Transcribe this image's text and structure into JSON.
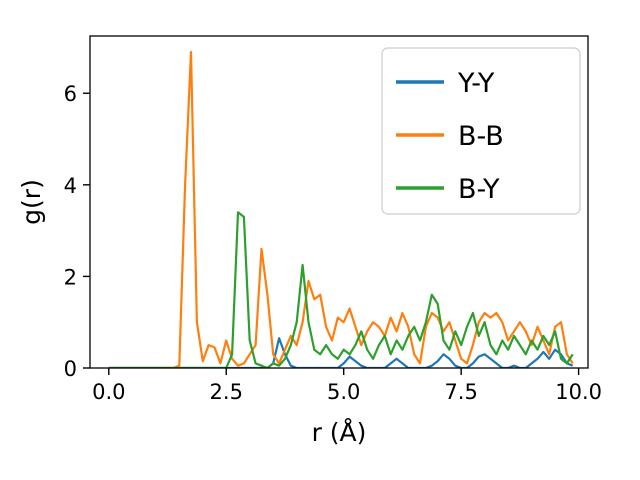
{
  "chart_data": {
    "type": "line",
    "title": "",
    "xlabel": "r (Å)",
    "ylabel": "g(r)",
    "xlim": [
      -0.4,
      10.2
    ],
    "ylim": [
      0,
      7.25
    ],
    "xticks": [
      0.0,
      2.5,
      5.0,
      7.5,
      10.0
    ],
    "xtick_labels": [
      "0.0",
      "2.5",
      "5.0",
      "7.5",
      "10.0"
    ],
    "yticks": [
      0,
      2,
      4,
      6
    ],
    "ytick_labels": [
      "0",
      "2",
      "4",
      "6"
    ],
    "grid": false,
    "legend_position": "upper right",
    "x": [
      0,
      0.125,
      0.25,
      0.375,
      0.5,
      0.625,
      0.75,
      0.875,
      1,
      1.125,
      1.25,
      1.375,
      1.5,
      1.625,
      1.75,
      1.875,
      2,
      2.125,
      2.25,
      2.375,
      2.5,
      2.625,
      2.75,
      2.875,
      3,
      3.125,
      3.25,
      3.375,
      3.5,
      3.625,
      3.75,
      3.875,
      4,
      4.125,
      4.25,
      4.375,
      4.5,
      4.625,
      4.75,
      4.875,
      5,
      5.125,
      5.25,
      5.375,
      5.5,
      5.625,
      5.75,
      5.875,
      6,
      6.125,
      6.25,
      6.375,
      6.5,
      6.625,
      6.75,
      6.875,
      7,
      7.125,
      7.25,
      7.375,
      7.5,
      7.625,
      7.75,
      7.875,
      8,
      8.125,
      8.25,
      8.375,
      8.5,
      8.625,
      8.75,
      8.875,
      9,
      9.125,
      9.25,
      9.375,
      9.5,
      9.625,
      9.75,
      9.875
    ],
    "series": [
      {
        "name": "Y-Y",
        "color": "#1f77b4",
        "values": [
          0,
          0,
          0,
          0,
          0,
          0,
          0,
          0,
          0,
          0,
          0,
          0,
          0,
          0,
          0,
          0,
          0,
          0,
          0,
          0,
          0,
          0,
          0,
          0,
          0,
          0,
          0,
          0,
          0.1,
          0.65,
          0.3,
          0.05,
          0,
          0,
          0,
          0,
          0,
          0,
          0,
          0,
          0.1,
          0.25,
          0.15,
          0.05,
          0,
          0,
          0,
          0,
          0.1,
          0.2,
          0.1,
          0,
          0,
          0,
          0,
          0.05,
          0.15,
          0.3,
          0.2,
          0.05,
          0,
          0,
          0.1,
          0.25,
          0.3,
          0.2,
          0.1,
          0,
          0,
          0.05,
          0,
          0,
          0.1,
          0.2,
          0.35,
          0.2,
          0.4,
          0.3,
          0.1,
          0.05
        ]
      },
      {
        "name": "B-B",
        "color": "#ff7f0e",
        "values": [
          0,
          0,
          0,
          0,
          0,
          0,
          0,
          0,
          0,
          0,
          0,
          0,
          0.05,
          4.0,
          6.9,
          1.0,
          0.15,
          0.5,
          0.45,
          0.1,
          0.6,
          0.2,
          0.05,
          0.1,
          0.3,
          0.5,
          2.6,
          1.6,
          0.3,
          0.1,
          0.4,
          0.7,
          0.5,
          1.0,
          1.9,
          1.5,
          1.6,
          0.9,
          0.6,
          1.1,
          1.0,
          1.3,
          0.9,
          0.5,
          0.8,
          1.0,
          0.9,
          0.7,
          1.1,
          0.8,
          1.2,
          0.9,
          0.3,
          0.1,
          0.9,
          1.2,
          1.1,
          0.8,
          1.0,
          0.6,
          0.2,
          0.1,
          0.5,
          1.0,
          1.2,
          1.1,
          1.2,
          1.0,
          0.6,
          0.8,
          1.0,
          0.8,
          0.5,
          0.9,
          0.6,
          0.3,
          0.9,
          1.0,
          0.3,
          0.1
        ]
      },
      {
        "name": "B-Y",
        "color": "#2ca02c",
        "values": [
          0,
          0,
          0,
          0,
          0,
          0,
          0,
          0,
          0,
          0,
          0,
          0,
          0,
          0,
          0,
          0,
          0,
          0,
          0,
          0,
          0,
          0.3,
          3.4,
          3.3,
          0.6,
          0.1,
          0.05,
          0,
          0.1,
          0.05,
          0.2,
          0.5,
          1.0,
          2.25,
          1.0,
          0.4,
          0.3,
          0.5,
          0.3,
          0.2,
          0.4,
          0.3,
          0.5,
          0.8,
          0.4,
          0.2,
          0.5,
          0.7,
          0.3,
          0.6,
          0.4,
          0.7,
          0.9,
          0.6,
          1.0,
          1.6,
          1.4,
          0.6,
          0.4,
          0.8,
          0.5,
          0.9,
          1.2,
          0.7,
          1.0,
          0.5,
          0.3,
          0.6,
          0.4,
          0.7,
          0.5,
          0.3,
          0.6,
          0.4,
          0.7,
          0.5,
          0.8,
          0.2,
          0.1,
          0.3
        ]
      }
    ]
  }
}
